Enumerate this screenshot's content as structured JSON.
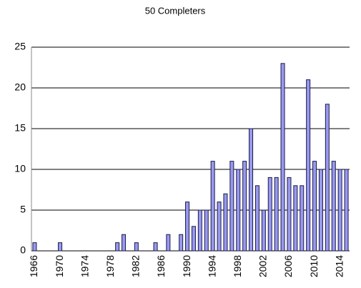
{
  "chart_data": {
    "type": "bar",
    "title": "50 Completers",
    "categories": [
      "1966",
      null,
      null,
      null,
      "1970",
      null,
      null,
      null,
      "1974",
      null,
      null,
      null,
      "1978",
      null,
      null,
      null,
      "1982",
      null,
      null,
      null,
      "1986",
      null,
      null,
      null,
      "1990",
      null,
      null,
      null,
      "1994",
      null,
      null,
      null,
      "1998",
      null,
      null,
      null,
      "2002",
      null,
      null,
      null,
      "2006",
      null,
      null,
      null,
      "2010",
      null,
      null,
      null,
      "2014",
      null
    ],
    "values": [
      1,
      0,
      0,
      0,
      1,
      0,
      0,
      0,
      0,
      0,
      0,
      0,
      0,
      1,
      2,
      0,
      1,
      0,
      0,
      1,
      0,
      2,
      0,
      2,
      6,
      3,
      5,
      5,
      11,
      6,
      7,
      11,
      10,
      11,
      15,
      8,
      5,
      9,
      9,
      23,
      9,
      8,
      8,
      21,
      11,
      10,
      18,
      11,
      10,
      10
    ],
    "color": "#9999ee",
    "ylim": [
      0,
      25
    ],
    "yticks": [
      0,
      5,
      10,
      15,
      20,
      25
    ],
    "grid": true
  }
}
